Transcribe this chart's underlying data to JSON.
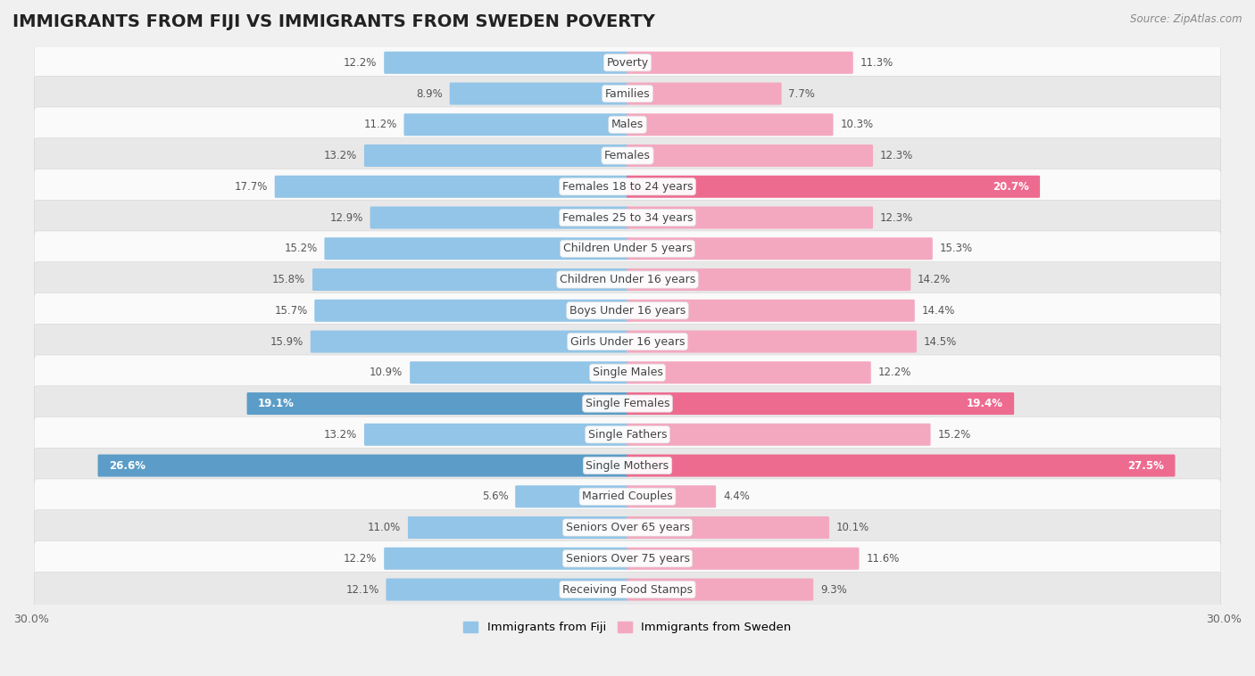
{
  "title": "IMMIGRANTS FROM FIJI VS IMMIGRANTS FROM SWEDEN POVERTY",
  "source": "Source: ZipAtlas.com",
  "categories": [
    "Poverty",
    "Families",
    "Males",
    "Females",
    "Females 18 to 24 years",
    "Females 25 to 34 years",
    "Children Under 5 years",
    "Children Under 16 years",
    "Boys Under 16 years",
    "Girls Under 16 years",
    "Single Males",
    "Single Females",
    "Single Fathers",
    "Single Mothers",
    "Married Couples",
    "Seniors Over 65 years",
    "Seniors Over 75 years",
    "Receiving Food Stamps"
  ],
  "fiji_values": [
    12.2,
    8.9,
    11.2,
    13.2,
    17.7,
    12.9,
    15.2,
    15.8,
    15.7,
    15.9,
    10.9,
    19.1,
    13.2,
    26.6,
    5.6,
    11.0,
    12.2,
    12.1
  ],
  "sweden_values": [
    11.3,
    7.7,
    10.3,
    12.3,
    20.7,
    12.3,
    15.3,
    14.2,
    14.4,
    14.5,
    12.2,
    19.4,
    15.2,
    27.5,
    4.4,
    10.1,
    11.6,
    9.3
  ],
  "fiji_color": "#92C5E8",
  "sweden_color": "#F4A8C0",
  "fiji_dark_color": "#5B9DC8",
  "sweden_dark_color": "#EE6B90",
  "background_color": "#F0F0F0",
  "row_light_color": "#FAFAFA",
  "row_dark_color": "#E8E8E8",
  "xlim": 30.0,
  "legend_fiji": "Immigrants from Fiji",
  "legend_sweden": "Immigrants from Sweden",
  "bar_height": 0.62,
  "title_fontsize": 14,
  "label_fontsize": 9,
  "value_fontsize": 8.5,
  "fiji_value_inside_indices": [
    11,
    13
  ],
  "sweden_value_inside_indices": [
    4,
    11,
    13
  ]
}
